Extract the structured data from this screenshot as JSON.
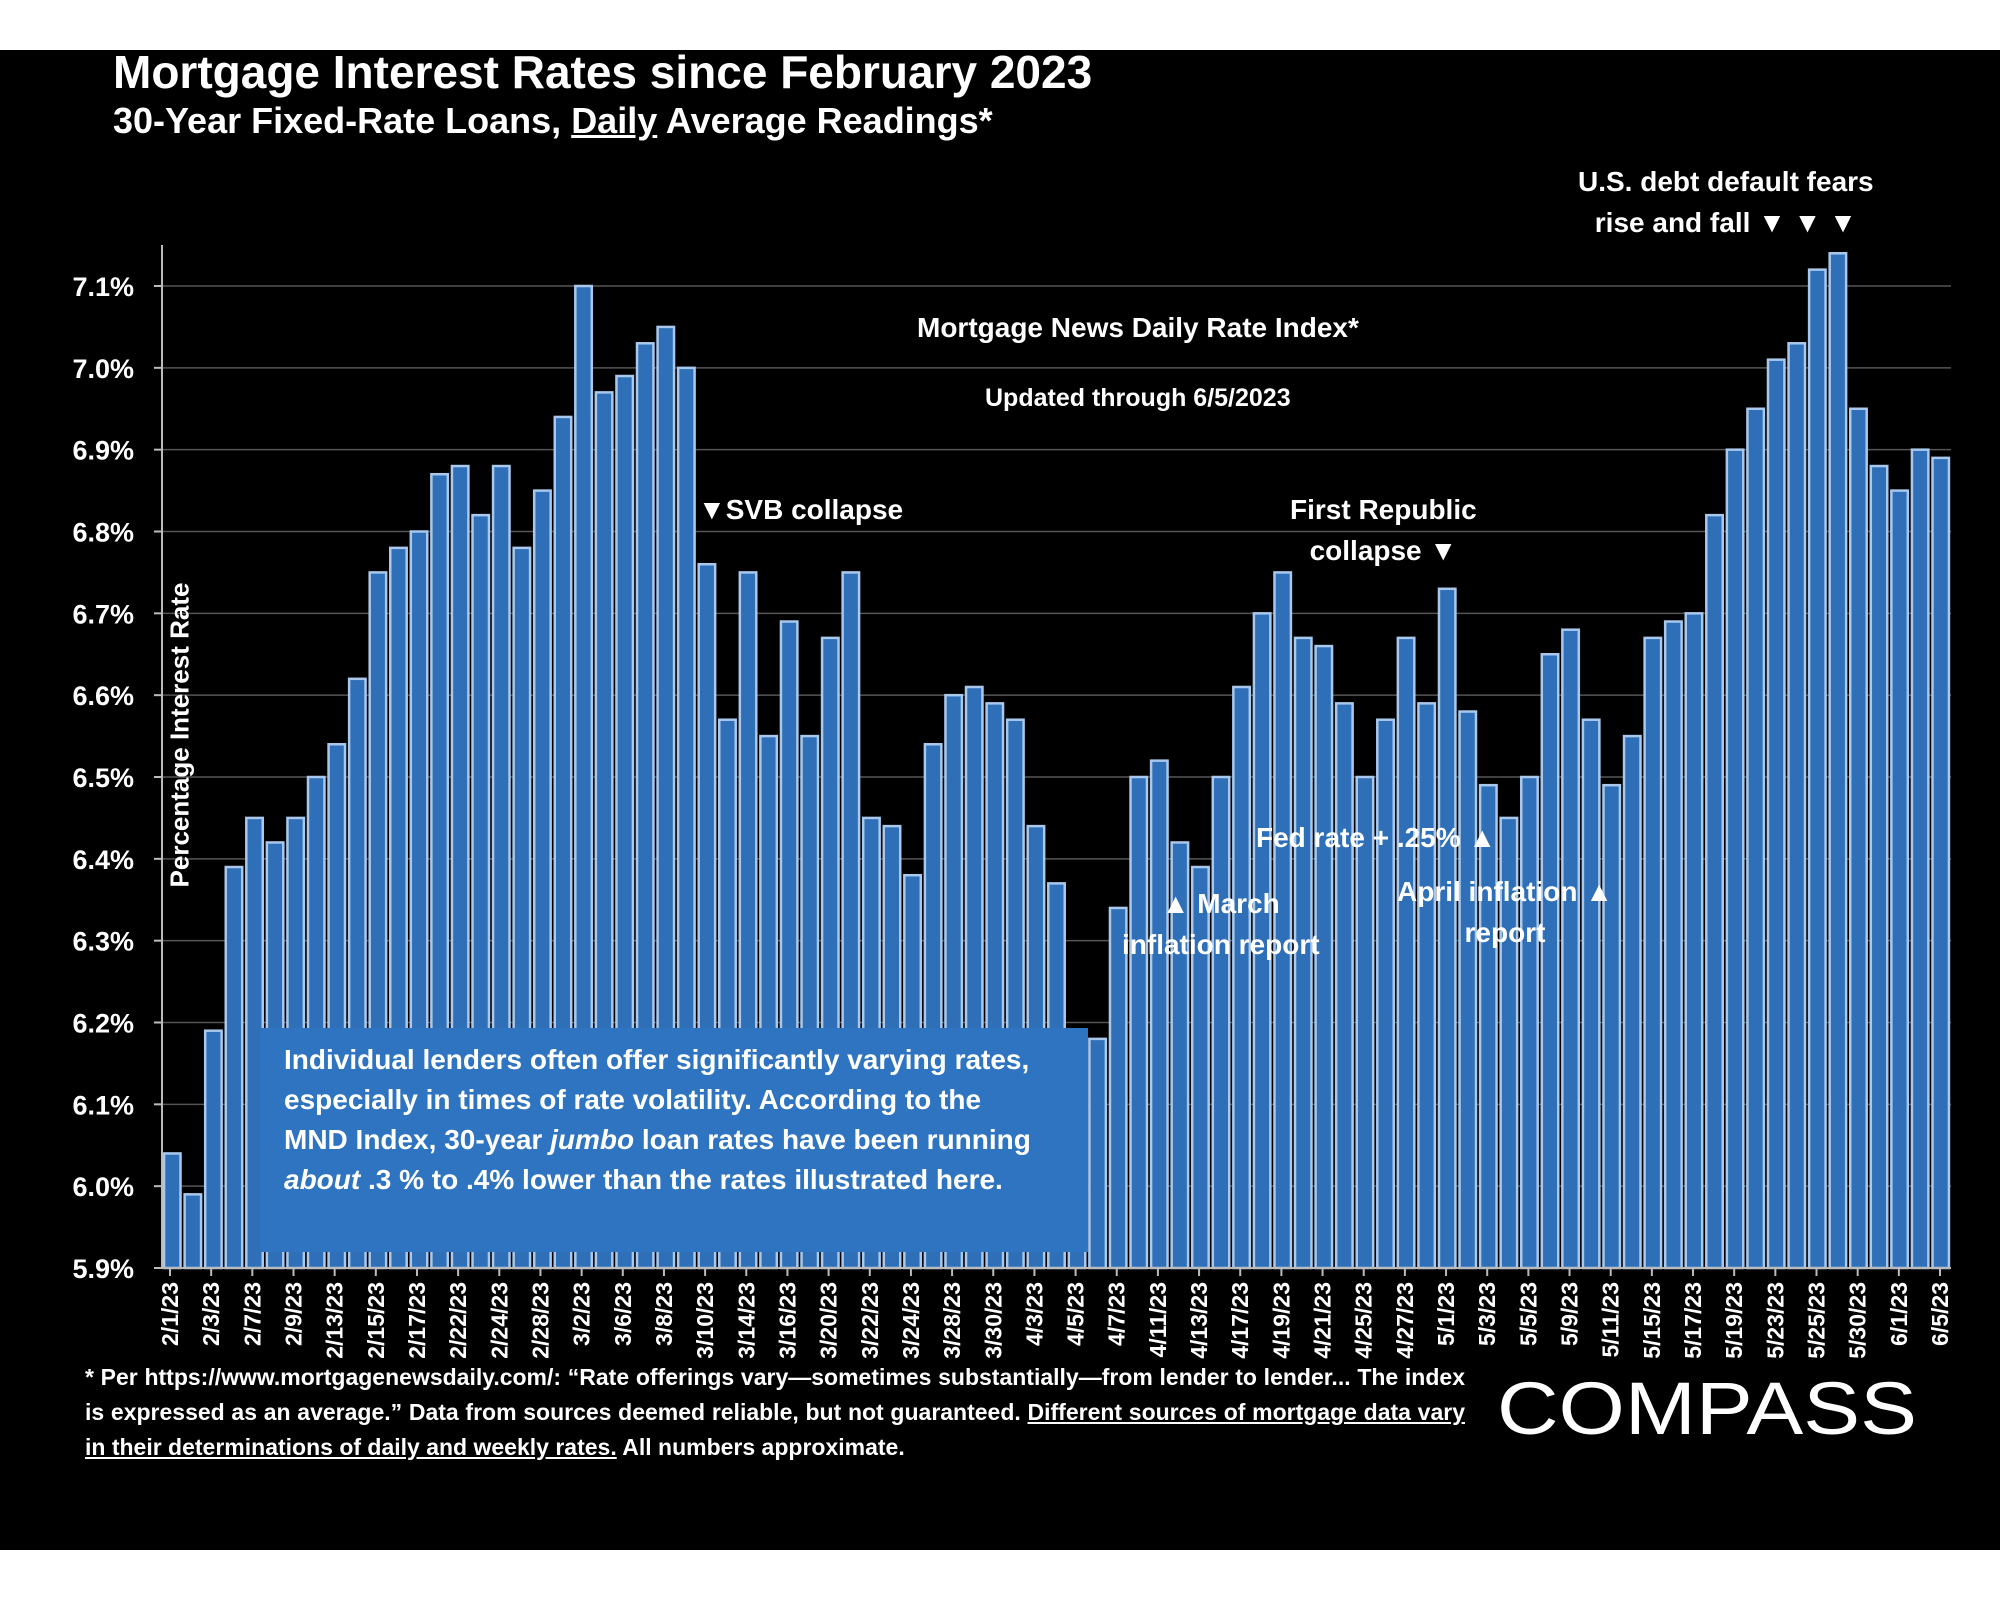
{
  "header": {
    "title": "Mortgage Interest Rates since February 2023",
    "subtitle_pre": "30-Year Fixed-Rate Loans, ",
    "subtitle_underlined": "Daily",
    "subtitle_post": " Average Readings*"
  },
  "annotations": {
    "index_title": "Mortgage News Daily Rate Index*",
    "updated": "Updated through 6/5/2023",
    "svb": "▼SVB collapse",
    "first_republic_1": "First Republic",
    "first_republic_2": "collapse ▼",
    "debt_1": "U.S. debt default fears",
    "debt_2": "rise and fall ▼ ▼ ▼",
    "march_1": "▲ March",
    "march_2": "inflation report",
    "fed": "Fed rate + .25% ▲",
    "april_1": "April inflation ▲",
    "april_2": "report"
  },
  "infobox": {
    "line1": "Individual lenders often offer significantly varying rates,",
    "line2": "especially in times of rate volatility. According to the",
    "line3_pre": "MND Index, 30-year ",
    "line3_em": "jumbo",
    "line3_post": " loan rates have been running",
    "line4_em": "about",
    "line4_post": " .3 % to .4% lower than the rates illustrated here."
  },
  "footnote": {
    "text": "* Per https://www.mortgagenewsdaily.com/: “Rate offerings vary—sometimes substantially—from lender to lender... The index is expressed as an average.” Data from sources deemed reliable, but not guaranteed. ",
    "underlined": "Different sources of mortgage data vary in their determinations of daily and weekly rates.",
    "tail": " All numbers approximate."
  },
  "logo": {
    "text": "COMPASS"
  },
  "colors": {
    "bar": "#2e6fb8",
    "bar_edge": "#a9c8ec",
    "background": "#000000",
    "infobox": "#2f74c0",
    "text": "#ffffff"
  },
  "chart_data": {
    "type": "bar",
    "ylabel": "Percentage Interest  Rate",
    "ylim": [
      5.9,
      7.15
    ],
    "yticks": [
      5.9,
      6.0,
      6.1,
      6.2,
      6.3,
      6.4,
      6.5,
      6.6,
      6.7,
      6.8,
      6.9,
      7.0,
      7.1
    ],
    "ytick_labels": [
      "5.9%",
      "6.0%",
      "6.1%",
      "6.2%",
      "6.3%",
      "6.4%",
      "6.5%",
      "6.6%",
      "6.7%",
      "6.8%",
      "6.9%",
      "7.0%",
      "7.1%"
    ],
    "grid": true,
    "xtick_labels": [
      "2/1/23",
      "2/3/23",
      "2/7/23",
      "2/9/23",
      "2/13/23",
      "2/15/23",
      "2/17/23",
      "2/22/23",
      "2/24/23",
      "2/28/23",
      "3/2/23",
      "3/6/23",
      "3/8/23",
      "3/10/23",
      "3/14/23",
      "3/16/23",
      "3/20/23",
      "3/22/23",
      "3/24/23",
      "3/28/23",
      "3/30/23",
      "4/3/23",
      "4/5/23",
      "4/7/23",
      "4/11/23",
      "4/13/23",
      "4/17/23",
      "4/19/23",
      "4/21/23",
      "4/25/23",
      "4/27/23",
      "5/1/23",
      "5/3/23",
      "5/5/23",
      "5/9/23",
      "5/11/23",
      "5/15/23",
      "5/17/23",
      "5/19/23",
      "5/23/23",
      "5/25/23",
      "5/30/23",
      "6/1/23",
      "6/5/23"
    ],
    "values": [
      6.04,
      5.99,
      6.19,
      6.39,
      6.45,
      6.42,
      6.45,
      6.5,
      6.54,
      6.62,
      6.75,
      6.78,
      6.8,
      6.87,
      6.88,
      6.82,
      6.88,
      6.78,
      6.85,
      6.94,
      7.1,
      6.97,
      6.99,
      7.03,
      7.05,
      7.0,
      6.76,
      6.57,
      6.75,
      6.55,
      6.69,
      6.55,
      6.67,
      6.75,
      6.45,
      6.44,
      6.38,
      6.54,
      6.6,
      6.61,
      6.59,
      6.57,
      6.44,
      6.37,
      6.16,
      6.18,
      6.34,
      6.5,
      6.52,
      6.42,
      6.39,
      6.5,
      6.61,
      6.7,
      6.75,
      6.67,
      6.66,
      6.59,
      6.5,
      6.57,
      6.67,
      6.59,
      6.73,
      6.58,
      6.49,
      6.45,
      6.5,
      6.65,
      6.68,
      6.57,
      6.49,
      6.55,
      6.67,
      6.69,
      6.7,
      6.82,
      6.9,
      6.95,
      7.01,
      7.03,
      7.12,
      7.14,
      6.95,
      6.88,
      6.85,
      6.9,
      6.89
    ]
  }
}
